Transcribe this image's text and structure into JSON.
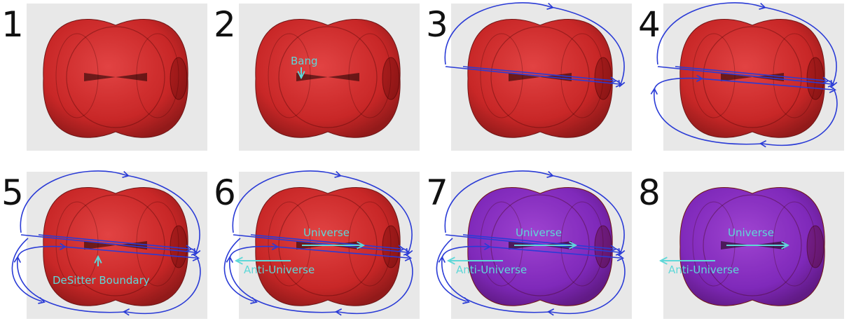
{
  "panels": [
    {
      "label": "1"
    },
    {
      "label": "2",
      "annotations": [
        "Bang"
      ]
    },
    {
      "label": "3"
    },
    {
      "label": "4"
    },
    {
      "label": "5",
      "annotations": [
        "DeSitter Boundary"
      ]
    },
    {
      "label": "6",
      "annotations": [
        "Universe",
        "Anti-Universe"
      ]
    },
    {
      "label": "7",
      "annotations": [
        "Universe",
        "Anti-Universe"
      ]
    },
    {
      "label": "8",
      "annotations": [
        "Universe",
        "Anti-Universe"
      ]
    }
  ]
}
